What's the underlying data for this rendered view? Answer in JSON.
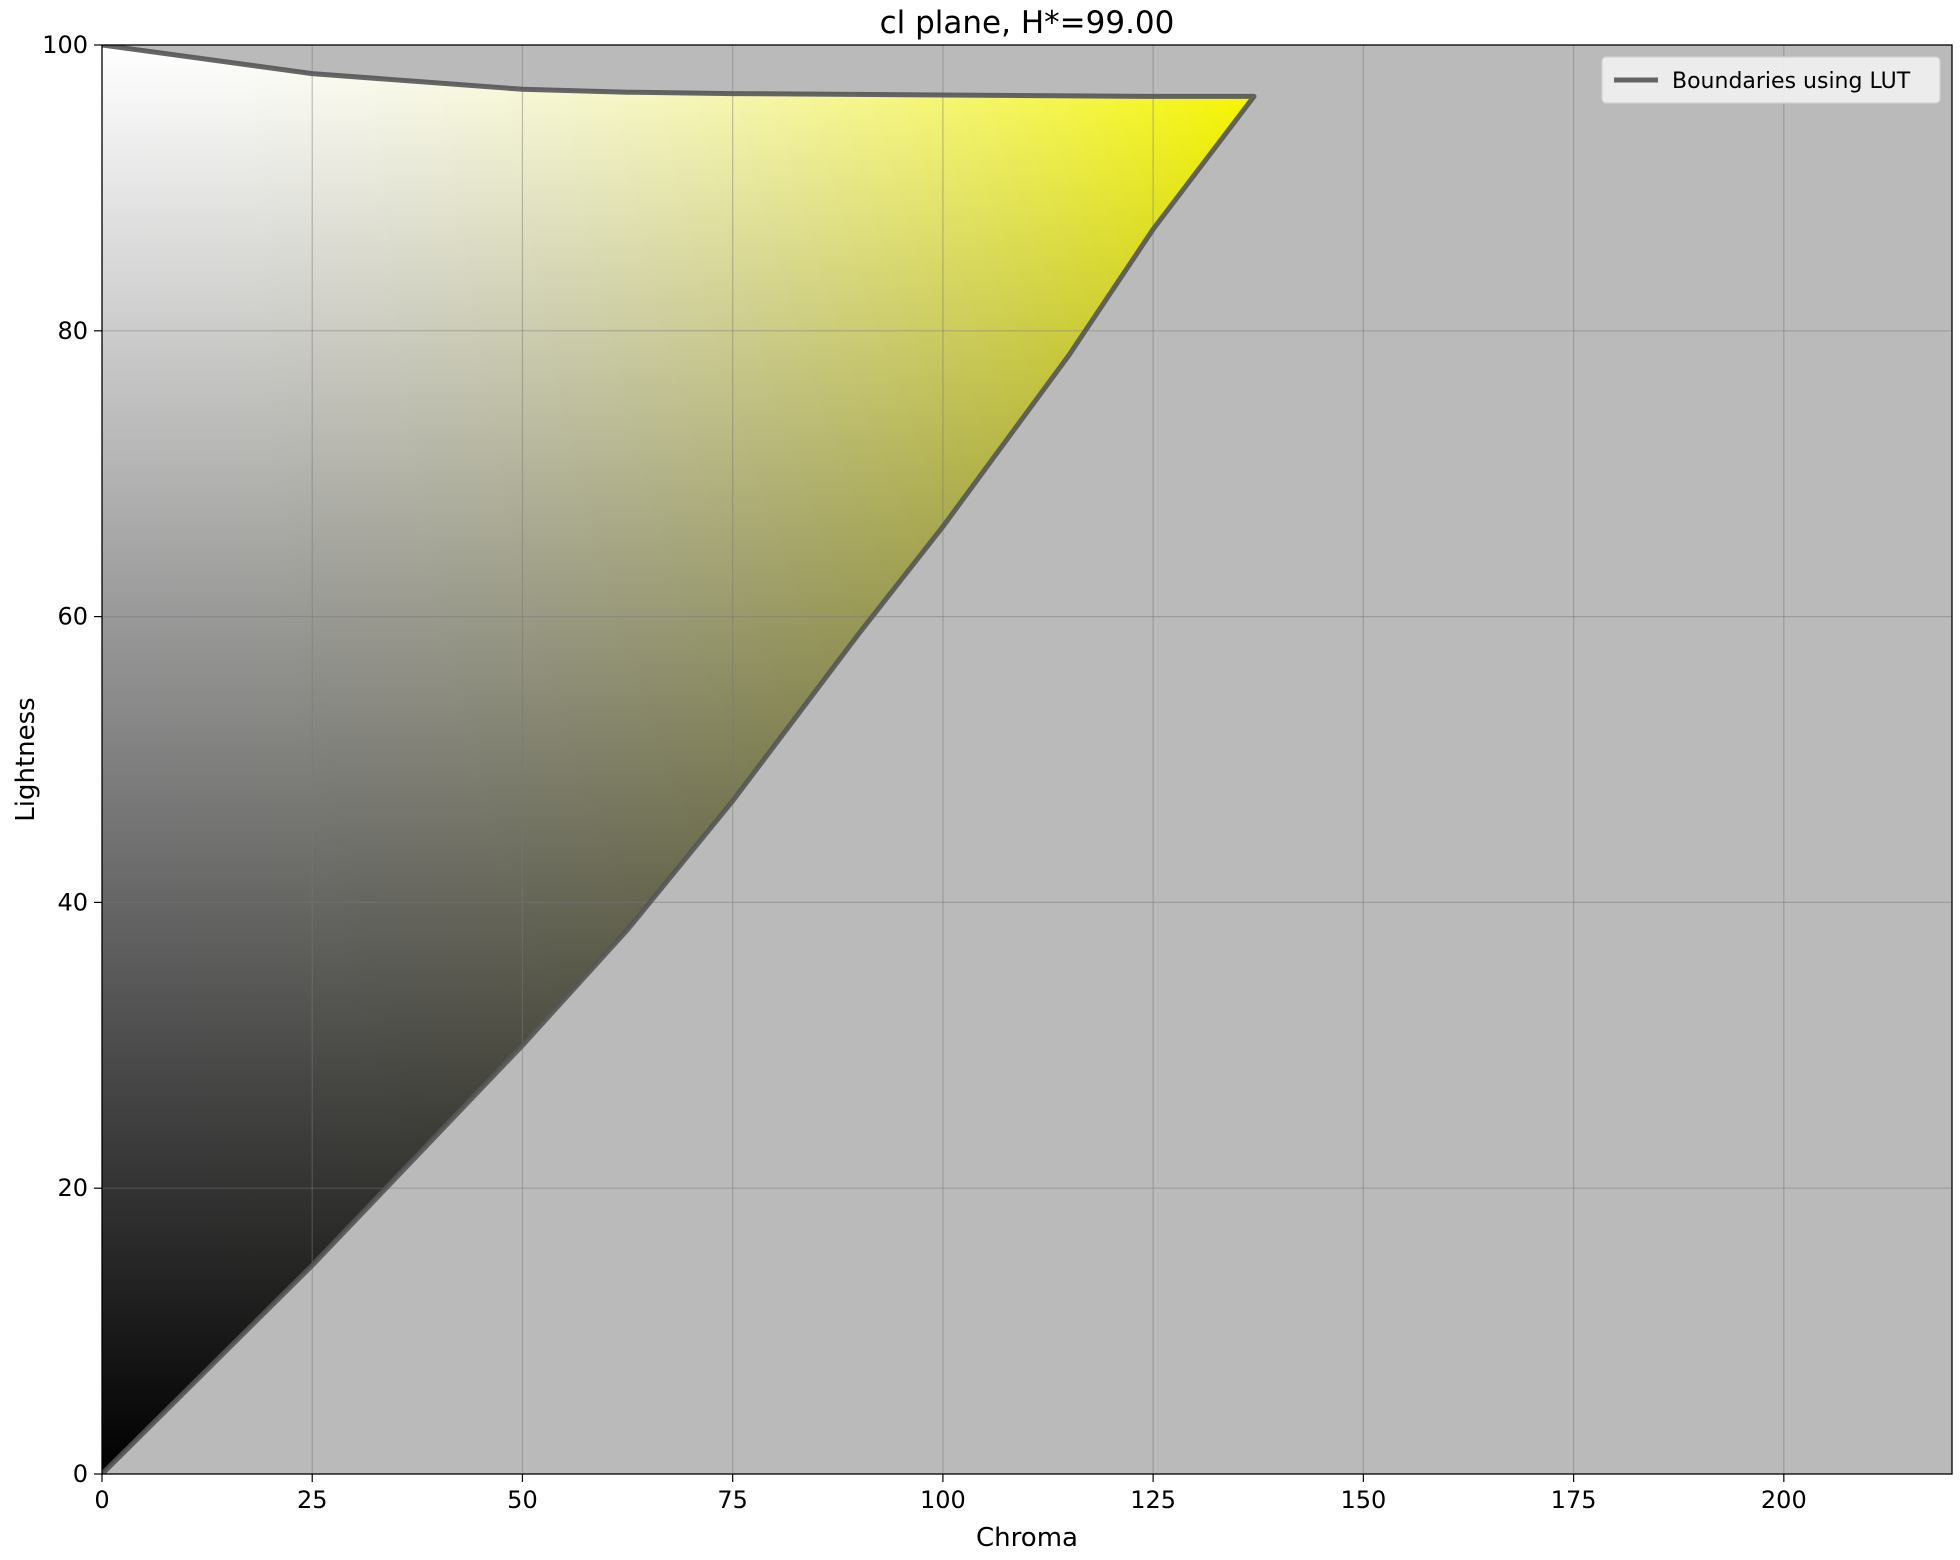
{
  "chart_data": {
    "type": "area",
    "title": "cl plane, H*=99.00",
    "xlabel": "Chroma",
    "ylabel": "Lightness",
    "xlim": [
      0,
      220
    ],
    "ylim": [
      0,
      100
    ],
    "x_ticks": [
      0,
      25,
      50,
      75,
      100,
      125,
      150,
      175,
      200
    ],
    "y_ticks": [
      0,
      20,
      40,
      60,
      80,
      100
    ],
    "grid": true,
    "legend": {
      "position": "top-right",
      "entries": [
        "Boundaries using LUT"
      ]
    },
    "colors": {
      "background": "#bababa",
      "gamut_hue": "#ffff00",
      "boundary_line": "#555555"
    },
    "series": [
      {
        "name": "Boundaries using LUT",
        "x": [
          0,
          25,
          50,
          62.5,
          75,
          100,
          125,
          137,
          125,
          115,
          100,
          90,
          75,
          62.5,
          50,
          25,
          0
        ],
        "y": [
          100,
          98,
          96.9,
          96.7,
          96.6,
          96.5,
          96.4,
          96.4,
          87.1,
          78.3,
          66.3,
          58.8,
          47.1,
          38.1,
          30.0,
          14.6,
          0
        ]
      }
    ]
  }
}
